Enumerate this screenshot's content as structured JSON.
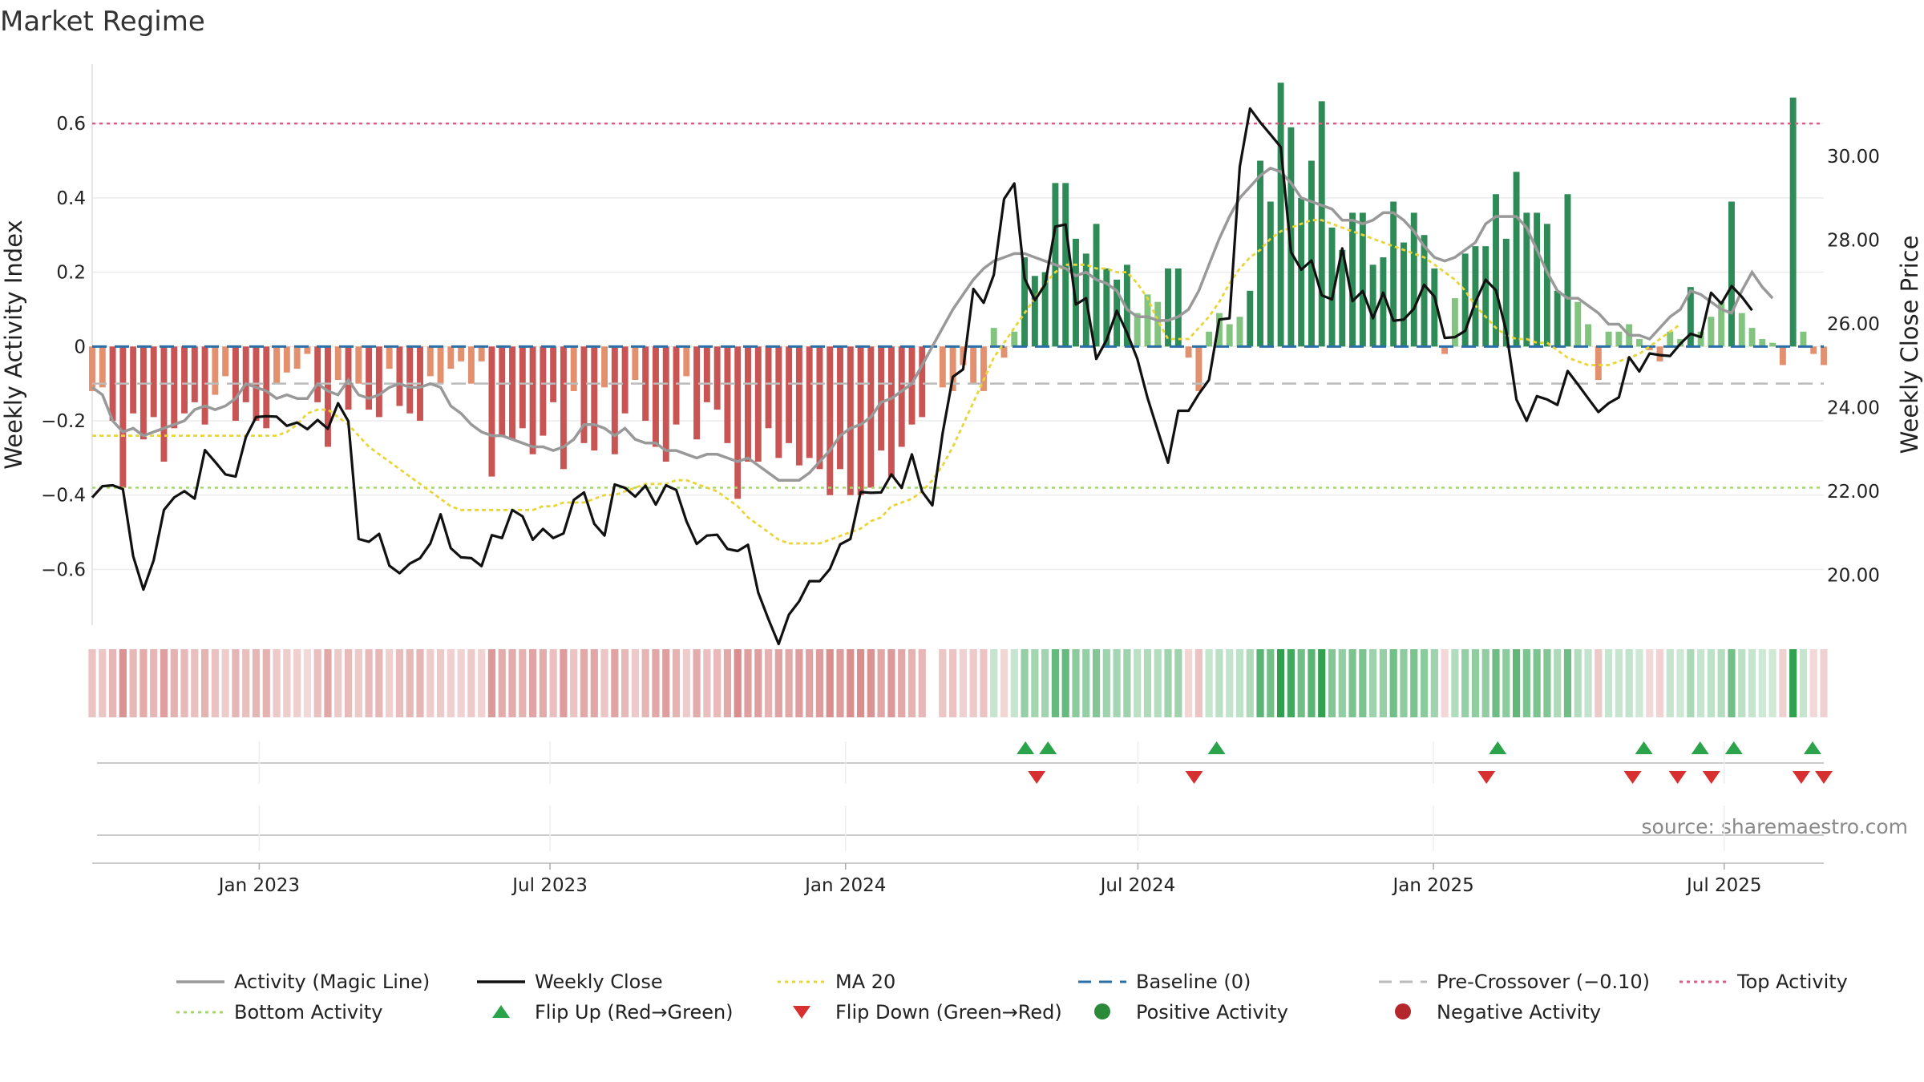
{
  "title": "Market Regime",
  "source_note": "source: sharemaestro.com",
  "colors": {
    "strong_red": "#c85454",
    "light_red": "#e3906f",
    "strong_green": "#2e8b57",
    "light_green": "#82c47f",
    "activity_line": "#999999",
    "close_line": "#111111",
    "ma_line": "#e8d53a",
    "baseline": "#2a6fa8",
    "pre_crossover": "#bbbbbb",
    "top_activity": "#e05a86",
    "bottom_activity": "#a3d96a",
    "flip_up": "#2aa34a",
    "flip_down": "#d63030"
  },
  "chart_data": {
    "type": "bar",
    "title": "Market Regime",
    "ylabel_left": "Weekly Activity Index",
    "ylabel_right": "Weekly Close Price",
    "ylim_left": [
      -0.75,
      0.76
    ],
    "ylim_right": [
      18.8,
      32.2
    ],
    "yticks_left": [
      -0.6,
      -0.4,
      -0.2,
      0,
      0.2,
      0.4,
      0.6
    ],
    "yticks_left_labels": [
      "−0.6",
      "−0.4",
      "−0.2",
      "0",
      "0.2",
      "0.4",
      "0.6"
    ],
    "yticks_right": [
      20,
      22,
      24,
      26,
      28,
      30
    ],
    "yticks_right_labels": [
      "20.00",
      "22.00",
      "24.00",
      "26.00",
      "28.00",
      "30.00"
    ],
    "x_start": "2022-09-19",
    "x_end": "2025-09-01",
    "x_ticks": [
      {
        "date": "2023-01-01",
        "label": "Jan 2023"
      },
      {
        "date": "2023-07-01",
        "label": "Jul 2023"
      },
      {
        "date": "2024-01-01",
        "label": "Jan 2024"
      },
      {
        "date": "2024-07-01",
        "label": "Jul 2024"
      },
      {
        "date": "2025-01-01",
        "label": "Jan 2025"
      },
      {
        "date": "2025-07-01",
        "label": "Jul 2025"
      }
    ],
    "activity": [
      -0.12,
      -0.11,
      -0.2,
      -0.38,
      -0.18,
      -0.25,
      -0.19,
      -0.31,
      -0.22,
      -0.18,
      -0.15,
      -0.21,
      -0.13,
      -0.08,
      -0.2,
      -0.15,
      -0.2,
      -0.22,
      -0.1,
      -0.07,
      -0.06,
      -0.02,
      -0.15,
      -0.27,
      -0.09,
      -0.17,
      -0.1,
      -0.17,
      -0.19,
      -0.06,
      -0.16,
      -0.18,
      -0.2,
      -0.08,
      -0.1,
      -0.06,
      -0.04,
      -0.1,
      -0.04,
      -0.35,
      -0.24,
      -0.25,
      -0.22,
      -0.29,
      -0.24,
      -0.15,
      -0.33,
      -0.12,
      -0.26,
      -0.28,
      -0.11,
      -0.29,
      -0.18,
      -0.09,
      -0.2,
      -0.27,
      -0.31,
      -0.21,
      -0.08,
      -0.25,
      -0.15,
      -0.17,
      -0.26,
      -0.41,
      -0.31,
      -0.31,
      -0.22,
      -0.3,
      -0.26,
      -0.32,
      -0.3,
      -0.33,
      -0.4,
      -0.33,
      -0.4,
      -0.4,
      -0.38,
      -0.28,
      -0.35,
      -0.27,
      -0.21,
      -0.19,
      null,
      -0.11,
      -0.12,
      -0.05,
      -0.1,
      -0.12,
      0.05,
      -0.03,
      0.04,
      0.24,
      0.19,
      0.2,
      0.44,
      0.44,
      0.29,
      0.25,
      0.33,
      0.21,
      0.18,
      0.22,
      0.09,
      0.14,
      0.12,
      0.21,
      0.21,
      -0.03,
      -0.12,
      0.04,
      0.09,
      0.06,
      0.08,
      0.15,
      0.5,
      0.39,
      0.71,
      0.59,
      0.4,
      0.5,
      0.66,
      0.32,
      0.26,
      0.36,
      0.36,
      0.22,
      0.24,
      0.39,
      0.28,
      0.36,
      0.3,
      0.21,
      -0.02,
      0.13,
      0.25,
      0.27,
      0.27,
      0.41,
      0.29,
      0.47,
      0.36,
      0.36,
      0.33,
      0.15,
      0.41,
      0.12,
      0.06,
      -0.09,
      0.04,
      0.04,
      0.06,
      0.02,
      -0.01,
      -0.04,
      0.04,
      0.02,
      0.16,
      0.04,
      0.08,
      0.12,
      0.39,
      0.09,
      0.05,
      0.02,
      0.01,
      -0.05,
      0.67,
      0.04,
      -0.02,
      -0.05
    ],
    "activity_line": [
      -0.11,
      -0.13,
      -0.2,
      -0.23,
      -0.22,
      -0.24,
      -0.23,
      -0.22,
      -0.21,
      -0.2,
      -0.17,
      -0.16,
      -0.17,
      -0.16,
      -0.14,
      -0.1,
      -0.11,
      -0.12,
      -0.14,
      -0.13,
      -0.14,
      -0.14,
      -0.1,
      -0.12,
      -0.13,
      -0.09,
      -0.13,
      -0.14,
      -0.13,
      -0.11,
      -0.1,
      -0.11,
      -0.11,
      -0.1,
      -0.11,
      -0.16,
      -0.18,
      -0.21,
      -0.23,
      -0.24,
      -0.24,
      -0.25,
      -0.26,
      -0.27,
      -0.27,
      -0.28,
      -0.27,
      -0.25,
      -0.21,
      -0.21,
      -0.22,
      -0.24,
      -0.22,
      -0.25,
      -0.26,
      -0.26,
      -0.28,
      -0.28,
      -0.29,
      -0.3,
      -0.29,
      -0.29,
      -0.3,
      -0.31,
      -0.3,
      -0.32,
      -0.34,
      -0.36,
      -0.36,
      -0.36,
      -0.34,
      -0.31,
      -0.28,
      -0.24,
      -0.22,
      -0.21,
      -0.19,
      -0.15,
      -0.14,
      -0.12,
      -0.1,
      -0.05,
      0.0,
      0.05,
      0.1,
      0.14,
      0.18,
      0.21,
      0.23,
      0.24,
      0.25,
      0.25,
      0.24,
      0.23,
      0.22,
      0.21,
      0.19,
      0.2,
      0.18,
      0.17,
      0.15,
      0.1,
      0.08,
      0.08,
      0.07,
      0.07,
      0.08,
      0.1,
      0.15,
      0.22,
      0.29,
      0.35,
      0.4,
      0.43,
      0.46,
      0.48,
      0.47,
      0.44,
      0.4,
      0.39,
      0.38,
      0.37,
      0.34,
      0.34,
      0.33,
      0.34,
      0.36,
      0.36,
      0.34,
      0.31,
      0.27,
      0.24,
      0.23,
      0.24,
      0.26,
      0.28,
      0.33,
      0.35,
      0.35,
      0.35,
      0.32,
      0.26,
      0.2,
      0.15,
      0.13,
      0.13,
      0.11,
      0.09,
      0.06,
      0.06,
      0.03,
      0.03,
      0.02,
      0.05,
      0.08,
      0.1,
      0.15,
      0.14,
      0.12,
      0.1,
      0.09,
      0.15,
      0.2,
      0.16,
      0.13
    ],
    "weekly_close": [
      21.85,
      22.12,
      22.14,
      22.05,
      20.45,
      19.65,
      20.35,
      21.55,
      21.85,
      22.0,
      21.82,
      22.98,
      22.7,
      22.4,
      22.35,
      23.29,
      23.77,
      23.79,
      23.78,
      23.56,
      23.64,
      23.48,
      23.7,
      23.49,
      24.1,
      23.67,
      20.86,
      20.79,
      20.98,
      20.22,
      20.04,
      20.27,
      20.4,
      20.75,
      21.45,
      20.64,
      20.42,
      20.4,
      20.21,
      20.95,
      20.88,
      21.55,
      21.4,
      20.84,
      21.1,
      20.88,
      20.99,
      21.79,
      21.97,
      21.22,
      20.94,
      22.16,
      22.08,
      21.87,
      22.13,
      21.68,
      22.14,
      22.03,
      21.28,
      20.74,
      20.94,
      20.96,
      20.62,
      20.57,
      20.72,
      19.58,
      18.94,
      18.35,
      19.05,
      19.37,
      19.85,
      19.85,
      20.14,
      20.73,
      20.86,
      21.98,
      21.96,
      21.97,
      22.4,
      22.08,
      22.88,
      21.99,
      21.66,
      23.38,
      24.73,
      24.91,
      26.83,
      26.5,
      27.17,
      28.98,
      29.35,
      27.08,
      26.56,
      26.93,
      28.32,
      28.37,
      26.46,
      26.61,
      25.16,
      25.61,
      26.31,
      25.78,
      25.16,
      24.23,
      23.45,
      22.68,
      23.92,
      23.92,
      24.32,
      24.66,
      26.1,
      26.13,
      29.75,
      31.14,
      30.81,
      30.52,
      30.22,
      27.71,
      27.29,
      27.51,
      26.68,
      26.58,
      27.8,
      26.54,
      26.78,
      26.13,
      26.74,
      26.07,
      26.1,
      26.36,
      26.93,
      26.65,
      25.66,
      25.68,
      25.83,
      26.52,
      27.05,
      26.8,
      25.83,
      24.19,
      23.68,
      24.27,
      24.19,
      24.06,
      24.87,
      24.55,
      24.22,
      23.89,
      24.1,
      24.24,
      25.2,
      24.86,
      25.29,
      25.25,
      25.23,
      25.52,
      25.76,
      25.68,
      26.74,
      26.48,
      26.9,
      26.64,
      26.32
    ],
    "ma20": [
      -0.24,
      -0.24,
      -0.24,
      -0.24,
      -0.24,
      -0.24,
      -0.24,
      -0.24,
      -0.24,
      -0.24,
      -0.24,
      -0.24,
      -0.24,
      -0.24,
      -0.24,
      -0.24,
      -0.24,
      -0.24,
      -0.24,
      -0.23,
      -0.21,
      -0.18,
      -0.17,
      -0.17,
      -0.19,
      -0.21,
      -0.24,
      -0.27,
      -0.29,
      -0.31,
      -0.33,
      -0.35,
      -0.37,
      -0.39,
      -0.41,
      -0.43,
      -0.44,
      -0.44,
      -0.44,
      -0.44,
      -0.44,
      -0.44,
      -0.44,
      -0.44,
      -0.43,
      -0.43,
      -0.42,
      -0.42,
      -0.42,
      -0.41,
      -0.4,
      -0.4,
      -0.39,
      -0.38,
      -0.37,
      -0.37,
      -0.37,
      -0.36,
      -0.36,
      -0.37,
      -0.38,
      -0.39,
      -0.41,
      -0.43,
      -0.46,
      -0.48,
      -0.5,
      -0.52,
      -0.53,
      -0.53,
      -0.53,
      -0.53,
      -0.52,
      -0.51,
      -0.5,
      -0.49,
      -0.47,
      -0.46,
      -0.43,
      -0.42,
      -0.41,
      -0.39,
      -0.36,
      -0.32,
      -0.27,
      -0.21,
      -0.15,
      -0.09,
      -0.03,
      0.01,
      0.05,
      0.09,
      0.13,
      0.17,
      0.2,
      0.22,
      0.22,
      0.22,
      0.21,
      0.21,
      0.2,
      0.2,
      0.17,
      0.13,
      0.07,
      0.02,
      0.02,
      0.02,
      0.05,
      0.08,
      0.12,
      0.17,
      0.21,
      0.24,
      0.26,
      0.29,
      0.31,
      0.32,
      0.33,
      0.34,
      0.34,
      0.33,
      0.32,
      0.31,
      0.3,
      0.29,
      0.28,
      0.27,
      0.26,
      0.25,
      0.24,
      0.22,
      0.2,
      0.18,
      0.15,
      0.11,
      0.08,
      0.05,
      0.03,
      0.02,
      0.02,
      0.01,
      0.01,
      -0.01,
      -0.03,
      -0.04,
      -0.05,
      -0.05,
      -0.05,
      -0.04,
      -0.03,
      -0.02,
      0.0,
      0.02,
      0.04,
      0.06
    ],
    "top_activity": 0.6,
    "bottom_activity": -0.38,
    "baseline": 0,
    "pre_crossover": -0.1,
    "flip_up_dates": [
      "2024-04-22",
      "2024-05-06",
      "2024-08-19",
      "2025-02-10",
      "2025-05-12",
      "2025-06-16",
      "2025-07-07",
      "2025-08-25"
    ],
    "flip_down_dates": [
      "2024-04-29",
      "2024-08-05",
      "2025-02-03",
      "2025-05-05",
      "2025-06-02",
      "2025-06-23",
      "2025-08-18",
      "2025-09-01"
    ],
    "legend": [
      {
        "label": "Activity (Magic Line)",
        "kind": "line",
        "color": "#999999"
      },
      {
        "label": "Weekly Close",
        "kind": "line",
        "color": "#111111"
      },
      {
        "label": "MA 20",
        "kind": "dotted",
        "color": "#e8d53a"
      },
      {
        "label": "Baseline (0)",
        "kind": "dashed",
        "color": "#2a6fa8"
      },
      {
        "label": "Pre-Crossover (−0.10)",
        "kind": "dashed",
        "color": "#bbbbbb"
      },
      {
        "label": "Top Activity",
        "kind": "dotted",
        "color": "#e05a86"
      },
      {
        "label": "Bottom Activity",
        "kind": "dotted",
        "color": "#a3d96a"
      },
      {
        "label": "Flip Up (Red→Green)",
        "kind": "triangle-up",
        "color": "#2aa34a"
      },
      {
        "label": "Flip Down (Green→Red)",
        "kind": "triangle-down",
        "color": "#d63030"
      },
      {
        "label": "Positive Activity",
        "kind": "dot",
        "color": "#2a8a3a"
      },
      {
        "label": "Negative Activity",
        "kind": "dot",
        "color": "#b3262c"
      }
    ]
  }
}
